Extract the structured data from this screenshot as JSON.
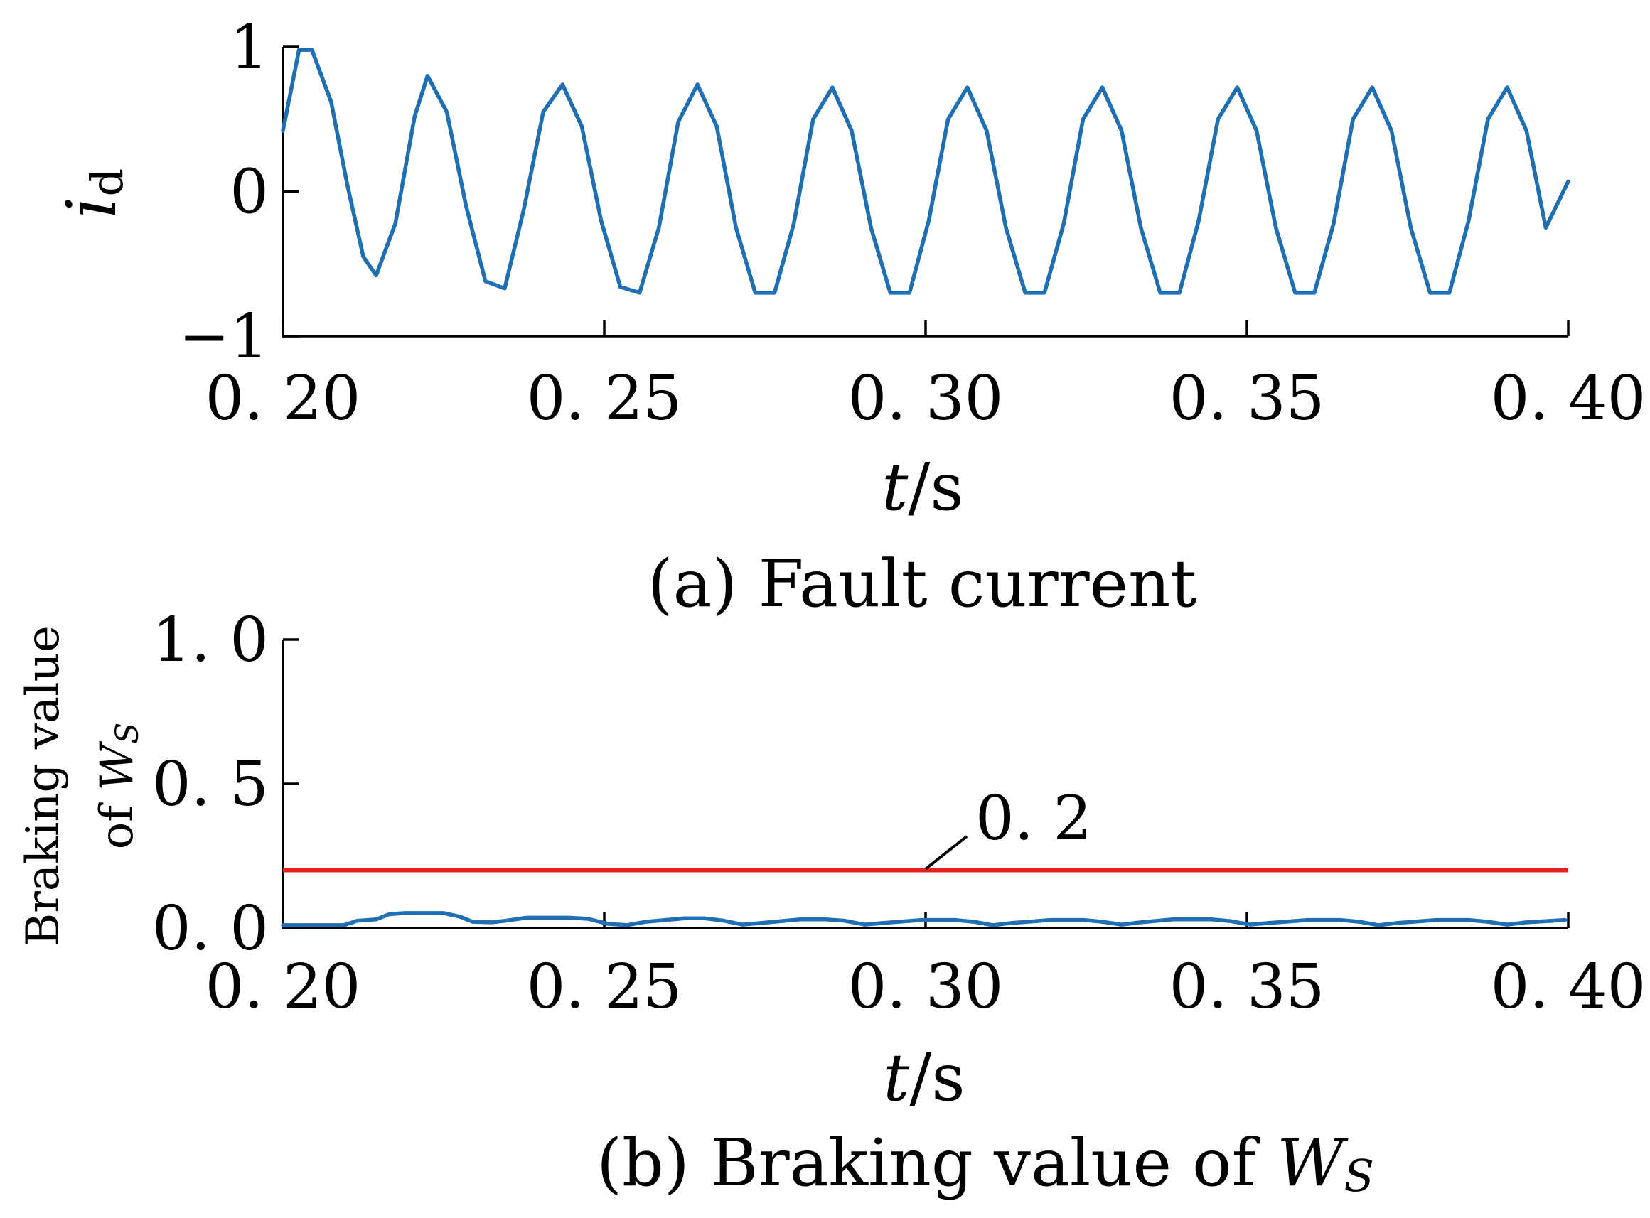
{
  "colors": {
    "series": "#1f6fb4",
    "reference": "#e8211c",
    "axis": "#000000"
  },
  "chart_data": [
    {
      "type": "line",
      "caption": "(a) Fault current",
      "xlabel": {
        "italic": "t",
        "rest": "/s"
      },
      "ylabel": {
        "main": "i",
        "sub": "d"
      },
      "xlim": [
        0.2,
        0.4
      ],
      "ylim": [
        -1,
        1
      ],
      "xticks": [
        0.2,
        0.25,
        0.3,
        0.35,
        0.4
      ],
      "xtick_labels": [
        "0. 20",
        "0. 25",
        "0. 30",
        "0. 35",
        "0. 40"
      ],
      "yticks": [
        -1,
        0,
        1
      ],
      "ytick_labels": [
        "−1",
        "0",
        "1"
      ],
      "grid": false,
      "series": [
        {
          "x": [
            0.2,
            0.2025,
            0.2045,
            0.2075,
            0.21,
            0.2125,
            0.2145,
            0.2175,
            0.2205,
            0.2225,
            0.2255,
            0.2285,
            0.2315,
            0.2345,
            0.2375,
            0.2405,
            0.2435,
            0.2465,
            0.2495,
            0.2525,
            0.2555,
            0.2585,
            0.2615,
            0.2645,
            0.2675,
            0.2705,
            0.2735,
            0.2765,
            0.2795,
            0.2825,
            0.2855,
            0.2885,
            0.2915,
            0.2945,
            0.2975,
            0.3005,
            0.3035,
            0.3065,
            0.3095,
            0.3125,
            0.3155,
            0.3185,
            0.3215,
            0.3245,
            0.3275,
            0.3305,
            0.3335,
            0.3365,
            0.3395,
            0.3425,
            0.3455,
            0.3485,
            0.3515,
            0.3545,
            0.3575,
            0.3605,
            0.3635,
            0.3665,
            0.3695,
            0.3725,
            0.3755,
            0.3785,
            0.3815,
            0.3845,
            0.3875,
            0.3905,
            0.3935,
            0.3965,
            0.4
          ],
          "y": [
            0.42,
            0.98,
            0.98,
            0.62,
            0.05,
            -0.45,
            -0.58,
            -0.22,
            0.52,
            0.8,
            0.55,
            -0.1,
            -0.62,
            -0.67,
            -0.12,
            0.55,
            0.74,
            0.45,
            -0.2,
            -0.66,
            -0.7,
            -0.25,
            0.48,
            0.74,
            0.45,
            -0.25,
            -0.7,
            -0.7,
            -0.22,
            0.5,
            0.72,
            0.42,
            -0.25,
            -0.7,
            -0.7,
            -0.2,
            0.5,
            0.72,
            0.42,
            -0.25,
            -0.7,
            -0.7,
            -0.22,
            0.5,
            0.72,
            0.42,
            -0.25,
            -0.7,
            -0.7,
            -0.2,
            0.5,
            0.72,
            0.42,
            -0.25,
            -0.7,
            -0.7,
            -0.22,
            0.5,
            0.72,
            0.42,
            -0.25,
            -0.7,
            -0.7,
            -0.2,
            0.5,
            0.72,
            0.42,
            -0.25,
            0.07
          ]
        }
      ]
    },
    {
      "type": "line",
      "caption": {
        "text": "(b) Braking value of ",
        "italic": "W",
        "sub": "S"
      },
      "xlabel": {
        "italic": "t",
        "rest": "/s"
      },
      "ylabel": {
        "line1": "Braking value",
        "line2": "of ",
        "italic": "W",
        "sub": "S"
      },
      "xlim": [
        0.2,
        0.4
      ],
      "ylim": [
        0.0,
        1.0
      ],
      "xticks": [
        0.2,
        0.25,
        0.3,
        0.35,
        0.4
      ],
      "xtick_labels": [
        "0. 20",
        "0. 25",
        "0. 30",
        "0. 35",
        "0. 40"
      ],
      "yticks": [
        0.0,
        0.5,
        1.0
      ],
      "ytick_labels": [
        "0. 0",
        "0. 5",
        "1. 0"
      ],
      "grid": false,
      "reference": {
        "value": 0.2,
        "label": "0. 2",
        "annotation_x": 0.3
      },
      "series": [
        {
          "x": [
            0.2,
            0.205,
            0.2095,
            0.2115,
            0.2145,
            0.2165,
            0.219,
            0.225,
            0.2275,
            0.2295,
            0.2325,
            0.2345,
            0.238,
            0.2445,
            0.2475,
            0.2505,
            0.2535,
            0.2565,
            0.2625,
            0.2655,
            0.2685,
            0.2715,
            0.2745,
            0.2805,
            0.2845,
            0.2875,
            0.2905,
            0.2935,
            0.2995,
            0.3045,
            0.3075,
            0.3105,
            0.3135,
            0.3195,
            0.3245,
            0.3275,
            0.3305,
            0.3335,
            0.3385,
            0.3445,
            0.3475,
            0.3505,
            0.3535,
            0.3595,
            0.3645,
            0.3675,
            0.3705,
            0.3735,
            0.3795,
            0.3845,
            0.3875,
            0.3905,
            0.3935,
            0.3995
          ],
          "y": [
            0.01,
            0.01,
            0.01,
            0.025,
            0.03,
            0.048,
            0.052,
            0.052,
            0.04,
            0.022,
            0.02,
            0.025,
            0.036,
            0.036,
            0.032,
            0.015,
            0.01,
            0.022,
            0.034,
            0.034,
            0.026,
            0.012,
            0.018,
            0.03,
            0.03,
            0.025,
            0.012,
            0.018,
            0.028,
            0.028,
            0.022,
            0.01,
            0.018,
            0.028,
            0.028,
            0.022,
            0.012,
            0.02,
            0.03,
            0.03,
            0.024,
            0.012,
            0.018,
            0.028,
            0.028,
            0.022,
            0.01,
            0.018,
            0.028,
            0.028,
            0.022,
            0.012,
            0.02,
            0.028
          ]
        }
      ]
    }
  ]
}
